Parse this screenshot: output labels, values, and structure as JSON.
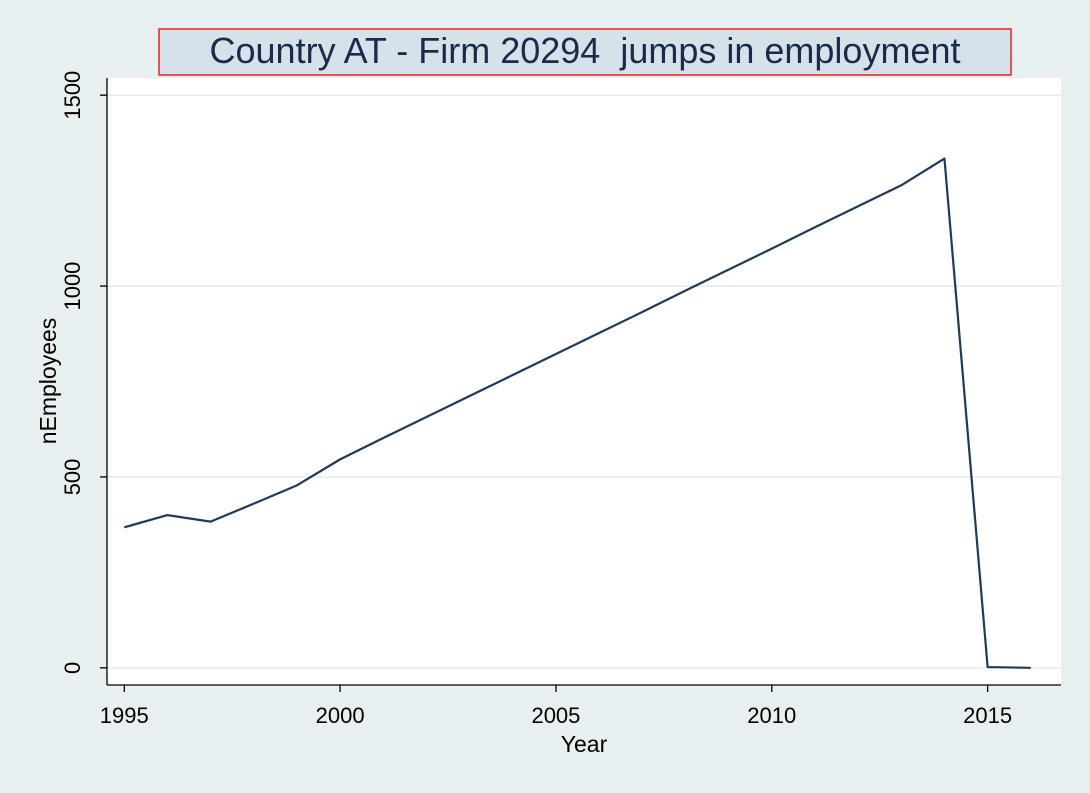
{
  "chart_data": {
    "type": "line",
    "title": "Country AT - Firm 20294  jumps in employment",
    "xlabel": "Year",
    "ylabel": "nEmployees",
    "xlim": [
      1994.6,
      2016.7
    ],
    "ylim": [
      -45,
      1545
    ],
    "x_ticks": [
      1995,
      2000,
      2005,
      2010,
      2015
    ],
    "y_ticks": [
      0,
      500,
      1000,
      1500
    ],
    "grid": true,
    "legend": "none",
    "colors": {
      "line": "#1f3a5a",
      "title_border": "#e8231f",
      "title_fill": "#d6e2ea",
      "background": "#e7eff1",
      "grid": "#e3eef1"
    },
    "series": [
      {
        "x": [
          1995,
          1996,
          1997,
          1998,
          1999,
          2000,
          2001,
          2002,
          2003,
          2004,
          2005,
          2006,
          2007,
          2008,
          2009,
          2010,
          2011,
          2012,
          2013,
          2014,
          2015,
          2016
        ],
        "values": [
          368,
          400,
          383,
          430,
          478,
          546,
          602,
          657,
          712,
          767,
          822,
          877,
          932,
          988,
          1043,
          1098,
          1154,
          1209,
          1264,
          1334,
          2,
          0
        ]
      }
    ]
  }
}
